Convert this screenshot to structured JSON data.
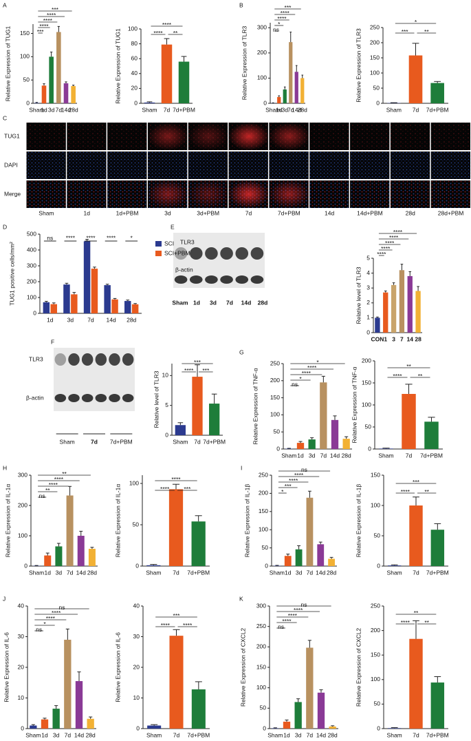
{
  "chart_data": [
    {
      "type": "bar",
      "panel": "A",
      "ylabel": "Relative Expression of TUG1",
      "categories": [
        "Sham",
        "1d",
        "3d",
        "7d",
        "14d",
        "28d"
      ],
      "values": [
        1,
        38,
        100,
        153,
        43,
        37
      ],
      "errors": [
        1,
        4,
        10,
        12,
        3,
        2
      ],
      "colors": [
        "#2b3a8f",
        "#e85a1e",
        "#1e7d3a",
        "#b89160",
        "#8a3a96",
        "#f2b134"
      ],
      "ylim": [
        0,
        170
      ],
      "yticks": [
        0,
        50,
        100,
        150
      ],
      "comparisons": [
        {
          "pair": [
            "Sham",
            "1d"
          ],
          "label": "***"
        },
        {
          "pair": [
            "Sham",
            "3d"
          ],
          "label": "****"
        },
        {
          "pair": [
            "Sham",
            "7d"
          ],
          "label": "****"
        },
        {
          "pair": [
            "Sham",
            "14d"
          ],
          "label": "****"
        },
        {
          "pair": [
            "Sham",
            "28d"
          ],
          "label": "***"
        }
      ]
    },
    {
      "type": "bar",
      "ylabel": "Relative Expression of TUG1",
      "categories": [
        "Sham",
        "7d",
        "7d+PBM"
      ],
      "values": [
        1,
        79,
        56
      ],
      "errors": [
        1,
        8,
        7
      ],
      "colors": [
        "#2b3a8f",
        "#e85a1e",
        "#1e7d3a"
      ],
      "ylim": [
        0,
        100
      ],
      "yticks": [
        0,
        20,
        40,
        60,
        80,
        100
      ],
      "comparisons": [
        {
          "pair": [
            "Sham",
            "7d"
          ],
          "label": "****"
        },
        {
          "pair": [
            "7d",
            "7d+PBM"
          ],
          "label": "**"
        },
        {
          "pair": [
            "Sham",
            "7d+PBM"
          ],
          "label": "****"
        }
      ]
    },
    {
      "type": "bar",
      "panel": "B",
      "ylabel": "Relative Expression of TLR3",
      "categories": [
        "Sham",
        "1d",
        "3d",
        "7d",
        "14d",
        "28d"
      ],
      "values": [
        1,
        25,
        55,
        243,
        125,
        100
      ],
      "errors": [
        1,
        5,
        10,
        40,
        25,
        12
      ],
      "colors": [
        "#2b3a8f",
        "#e85a1e",
        "#1e7d3a",
        "#b89160",
        "#8a3a96",
        "#f2b134"
      ],
      "ylim": [
        0,
        320
      ],
      "yticks": [
        0,
        100,
        200,
        300
      ],
      "comparisons": [
        {
          "pair": [
            "Sham",
            "1d"
          ],
          "label": "ns"
        },
        {
          "pair": [
            "Sham",
            "3d"
          ],
          "label": "*"
        },
        {
          "pair": [
            "Sham",
            "7d"
          ],
          "label": "****"
        },
        {
          "pair": [
            "Sham",
            "14d"
          ],
          "label": "****"
        },
        {
          "pair": [
            "Sham",
            "28d"
          ],
          "label": "***"
        }
      ]
    },
    {
      "type": "bar",
      "ylabel": "Relative Expression of TLR3",
      "categories": [
        "Sham",
        "7d",
        "7d+PBM"
      ],
      "values": [
        1,
        158,
        67
      ],
      "errors": [
        1,
        40,
        5
      ],
      "colors": [
        "#2b3a8f",
        "#e85a1e",
        "#1e7d3a"
      ],
      "ylim": [
        0,
        250
      ],
      "yticks": [
        0,
        50,
        100,
        150,
        200,
        250
      ],
      "comparisons": [
        {
          "pair": [
            "Sham",
            "7d"
          ],
          "label": "***"
        },
        {
          "pair": [
            "7d",
            "7d+PBM"
          ],
          "label": "**"
        },
        {
          "pair": [
            "Sham",
            "7d+PBM"
          ],
          "label": "*"
        }
      ]
    },
    {
      "type": "bar",
      "panel": "D",
      "ylabel": "TUG1 positive cells/mm²",
      "categories": [
        "1d",
        "3d",
        "7d",
        "14d",
        "28d"
      ],
      "series": [
        {
          "name": "SCI",
          "color": "#2b3a8f",
          "values": [
            70,
            182,
            455,
            178,
            78
          ],
          "errors": [
            6,
            8,
            12,
            6,
            6
          ]
        },
        {
          "name": "SCI+PBM",
          "color": "#e85a1e",
          "values": [
            58,
            120,
            282,
            88,
            57
          ],
          "errors": [
            8,
            12,
            10,
            6,
            5
          ]
        }
      ],
      "ylim": [
        0,
        500
      ],
      "yticks": [
        0,
        100,
        200,
        300,
        400,
        500
      ],
      "significance": [
        "ns",
        "****",
        "****",
        "****",
        "*"
      ],
      "legend": "upper right"
    },
    {
      "type": "bar",
      "ylabel": "Relative level of TLR3",
      "categories": [
        "CON",
        "1",
        "3",
        "7",
        "14",
        "28"
      ],
      "values": [
        1.0,
        2.7,
        3.2,
        4.2,
        3.8,
        2.8
      ],
      "errors": [
        0.05,
        0.1,
        0.15,
        0.4,
        0.3,
        0.3
      ],
      "colors": [
        "#2b3a8f",
        "#e85a1e",
        "#c9a46a",
        "#b89160",
        "#8a3a96",
        "#f2b134"
      ],
      "ylim": [
        0,
        5
      ],
      "yticks": [
        0,
        1,
        2,
        3,
        4,
        5
      ],
      "comparisons": [
        {
          "pair": [
            "CON",
            "1"
          ],
          "label": "****"
        },
        {
          "pair": [
            "CON",
            "3"
          ],
          "label": "****"
        },
        {
          "pair": [
            "CON",
            "7"
          ],
          "label": "****"
        },
        {
          "pair": [
            "CON",
            "14"
          ],
          "label": "****"
        },
        {
          "pair": [
            "CON",
            "28"
          ],
          "label": "****"
        }
      ]
    },
    {
      "type": "bar",
      "ylabel": "Relative level of TLR3",
      "categories": [
        "Sham",
        "7d",
        "7d+PBM"
      ],
      "values": [
        1.7,
        9.8,
        5.3
      ],
      "errors": [
        0.4,
        2,
        1.6
      ],
      "colors": [
        "#2b3a8f",
        "#e85a1e",
        "#1e7d3a"
      ],
      "ylim": [
        0,
        12
      ],
      "yticks": [
        0,
        5,
        10
      ],
      "comparisons": [
        {
          "pair": [
            "Sham",
            "7d"
          ],
          "label": "****"
        },
        {
          "pair": [
            "7d",
            "7d+PBM"
          ],
          "label": "***"
        },
        {
          "pair": [
            "Sham",
            "7d+PBM"
          ],
          "label": "***"
        }
      ]
    },
    {
      "type": "bar",
      "panel": "G",
      "ylabel": "Relative Expression of  TNF-α",
      "categories": [
        "Sham",
        "1d",
        "3d",
        "7d",
        "14d",
        "28d"
      ],
      "values": [
        1,
        18,
        28,
        195,
        85,
        30
      ],
      "errors": [
        1,
        4,
        5,
        18,
        12,
        6
      ],
      "colors": [
        "#2b3a8f",
        "#e85a1e",
        "#1e7d3a",
        "#b89160",
        "#8a3a96",
        "#f2b134"
      ],
      "ylim": [
        0,
        250
      ],
      "yticks": [
        0,
        50,
        100,
        150,
        200,
        250
      ],
      "comparisons": [
        {
          "pair": [
            "Sham",
            "1d"
          ],
          "label": "ns"
        },
        {
          "pair": [
            "Sham",
            "3d"
          ],
          "label": "*"
        },
        {
          "pair": [
            "Sham",
            "7d"
          ],
          "label": "****"
        },
        {
          "pair": [
            "Sham",
            "14d"
          ],
          "label": "****"
        },
        {
          "pair": [
            "Sham",
            "28d"
          ],
          "label": "*"
        }
      ]
    },
    {
      "type": "bar",
      "ylabel": "Relative Expression of  TNF-α",
      "categories": [
        "Sham",
        "7d",
        "7d+PBM"
      ],
      "values": [
        1,
        125,
        62
      ],
      "errors": [
        1,
        22,
        10
      ],
      "colors": [
        "#2b3a8f",
        "#e85a1e",
        "#1e7d3a"
      ],
      "ylim": [
        0,
        200
      ],
      "yticks": [
        0,
        50,
        100,
        150,
        200
      ],
      "comparisons": [
        {
          "pair": [
            "Sham",
            "7d"
          ],
          "label": "****"
        },
        {
          "pair": [
            "7d",
            "7d+PBM"
          ],
          "label": "**"
        },
        {
          "pair": [
            "Sham",
            "7d+PBM"
          ],
          "label": "**"
        }
      ]
    },
    {
      "type": "bar",
      "panel": "H",
      "ylabel": "Relative Expression of IL-1α",
      "categories": [
        "Sham",
        "1d",
        "3d",
        "7d",
        "14d",
        "28d"
      ],
      "values": [
        1,
        35,
        65,
        233,
        100,
        57
      ],
      "errors": [
        1,
        8,
        10,
        30,
        15,
        5
      ],
      "colors": [
        "#2b3a8f",
        "#e85a1e",
        "#1e7d3a",
        "#b89160",
        "#8a3a96",
        "#f2b134"
      ],
      "ylim": [
        0,
        300
      ],
      "yticks": [
        0,
        100,
        200,
        300
      ],
      "comparisons": [
        {
          "pair": [
            "Sham",
            "1d"
          ],
          "label": "ns"
        },
        {
          "pair": [
            "Sham",
            "3d"
          ],
          "label": "**"
        },
        {
          "pair": [
            "Sham",
            "7d"
          ],
          "label": "****"
        },
        {
          "pair": [
            "Sham",
            "14d"
          ],
          "label": "****"
        },
        {
          "pair": [
            "Sham",
            "28d"
          ],
          "label": "**"
        }
      ]
    },
    {
      "type": "bar",
      "ylabel": "Relative Expression of IL-1α",
      "categories": [
        "Sham",
        "7d",
        "7d+PBM"
      ],
      "values": [
        1,
        93,
        54
      ],
      "errors": [
        1,
        6,
        7
      ],
      "colors": [
        "#2b3a8f",
        "#e85a1e",
        "#1e7d3a"
      ],
      "ylim": [
        0,
        110
      ],
      "yticks": [
        0,
        50,
        100
      ],
      "comparisons": [
        {
          "pair": [
            "Sham",
            "7d"
          ],
          "label": "****"
        },
        {
          "pair": [
            "7d",
            "7d+PBM"
          ],
          "label": "***"
        },
        {
          "pair": [
            "Sham",
            "7d+PBM"
          ],
          "label": "****"
        }
      ]
    },
    {
      "type": "bar",
      "panel": "I",
      "ylabel": "Relative Expression of IL-1β",
      "categories": [
        "Sham",
        "1d",
        "3d",
        "7d",
        "14d",
        "28d"
      ],
      "values": [
        1,
        28,
        46,
        188,
        60,
        20
      ],
      "errors": [
        1,
        5,
        10,
        18,
        6,
        4
      ],
      "colors": [
        "#2b3a8f",
        "#e85a1e",
        "#1e7d3a",
        "#b89160",
        "#8a3a96",
        "#f2b134"
      ],
      "ylim": [
        0,
        250
      ],
      "yticks": [
        0,
        50,
        100,
        150,
        200,
        250
      ],
      "comparisons": [
        {
          "pair": [
            "Sham",
            "1d"
          ],
          "label": "*"
        },
        {
          "pair": [
            "Sham",
            "3d"
          ],
          "label": "***"
        },
        {
          "pair": [
            "Sham",
            "7d"
          ],
          "label": "****"
        },
        {
          "pair": [
            "Sham",
            "14d"
          ],
          "label": "****"
        },
        {
          "pair": [
            "Sham",
            "28d"
          ],
          "label": "ns"
        }
      ]
    },
    {
      "type": "bar",
      "ylabel": "Relative Expression of IL-1β",
      "categories": [
        "Sham",
        "7d",
        "7d+PBM"
      ],
      "values": [
        1,
        100,
        60
      ],
      "errors": [
        1,
        14,
        10
      ],
      "colors": [
        "#2b3a8f",
        "#e85a1e",
        "#1e7d3a"
      ],
      "ylim": [
        0,
        150
      ],
      "yticks": [
        0,
        50,
        100,
        150
      ],
      "comparisons": [
        {
          "pair": [
            "Sham",
            "7d"
          ],
          "label": "****"
        },
        {
          "pair": [
            "7d",
            "7d+PBM"
          ],
          "label": "**"
        },
        {
          "pair": [
            "Sham",
            "7d+PBM"
          ],
          "label": "***"
        }
      ]
    },
    {
      "type": "bar",
      "panel": "J",
      "ylabel": "Relative Expression of IL-6",
      "categories": [
        "Sham",
        "1d",
        "3d",
        "7d",
        "14d",
        "28d"
      ],
      "values": [
        1,
        3,
        6.5,
        29,
        15.5,
        3.2
      ],
      "errors": [
        0.3,
        0.4,
        1,
        3.5,
        3,
        0.6
      ],
      "colors": [
        "#2b3a8f",
        "#e85a1e",
        "#1e7d3a",
        "#b89160",
        "#8a3a96",
        "#f2b134"
      ],
      "ylim": [
        0,
        40
      ],
      "yticks": [
        0,
        10,
        20,
        30,
        40
      ],
      "comparisons": [
        {
          "pair": [
            "Sham",
            "1d"
          ],
          "label": "ns"
        },
        {
          "pair": [
            "Sham",
            "3d"
          ],
          "label": "*"
        },
        {
          "pair": [
            "Sham",
            "7d"
          ],
          "label": "****"
        },
        {
          "pair": [
            "Sham",
            "14d"
          ],
          "label": "****"
        },
        {
          "pair": [
            "Sham",
            "28d"
          ],
          "label": "ns"
        }
      ]
    },
    {
      "type": "bar",
      "ylabel": "Relative Expression of IL-6",
      "categories": [
        "Sham",
        "7d",
        "7d+PBM"
      ],
      "values": [
        1,
        30.3,
        12.8
      ],
      "errors": [
        0.3,
        2,
        2.5
      ],
      "colors": [
        "#2b3a8f",
        "#e85a1e",
        "#1e7d3a"
      ],
      "ylim": [
        0,
        40
      ],
      "yticks": [
        0,
        10,
        20,
        30,
        40
      ],
      "comparisons": [
        {
          "pair": [
            "Sham",
            "7d"
          ],
          "label": "****"
        },
        {
          "pair": [
            "7d",
            "7d+PBM"
          ],
          "label": "****"
        },
        {
          "pair": [
            "Sham",
            "7d+PBM"
          ],
          "label": "***"
        }
      ]
    },
    {
      "type": "bar",
      "panel": "K",
      "ylabel": "Relative Expression of  CXCL2",
      "categories": [
        "Sham",
        "1d",
        "3d",
        "7d",
        "14d",
        "28d"
      ],
      "values": [
        1,
        17,
        65,
        198,
        88,
        5
      ],
      "errors": [
        1,
        4,
        8,
        18,
        7,
        2
      ],
      "colors": [
        "#2b3a8f",
        "#e85a1e",
        "#1e7d3a",
        "#b89160",
        "#8a3a96",
        "#f2b134"
      ],
      "ylim": [
        0,
        300
      ],
      "yticks": [
        0,
        50,
        100,
        150,
        200,
        250,
        300
      ],
      "comparisons": [
        {
          "pair": [
            "Sham",
            "1d"
          ],
          "label": "ns"
        },
        {
          "pair": [
            "Sham",
            "3d"
          ],
          "label": "****"
        },
        {
          "pair": [
            "Sham",
            "7d"
          ],
          "label": "****"
        },
        {
          "pair": [
            "Sham",
            "14d"
          ],
          "label": "****"
        },
        {
          "pair": [
            "Sham",
            "28d"
          ],
          "label": "ns"
        }
      ]
    },
    {
      "type": "bar",
      "ylabel": "Relative Expression of  CXCL2",
      "categories": [
        "Sham",
        "7d",
        "7d+PBM"
      ],
      "values": [
        1,
        183,
        94
      ],
      "errors": [
        1,
        37,
        12
      ],
      "colors": [
        "#2b3a8f",
        "#e85a1e",
        "#1e7d3a"
      ],
      "ylim": [
        0,
        250
      ],
      "yticks": [
        0,
        50,
        100,
        150,
        200,
        250
      ],
      "comparisons": [
        {
          "pair": [
            "Sham",
            "7d"
          ],
          "label": "****"
        },
        {
          "pair": [
            "7d",
            "7d+PBM"
          ],
          "label": "**"
        },
        {
          "pair": [
            "Sham",
            "7d+PBM"
          ],
          "label": "**"
        }
      ]
    }
  ],
  "image_panels": {
    "C": {
      "panel": "C",
      "rows": [
        "TUG1",
        "DAPI",
        "Merge"
      ],
      "columns": [
        "Sham",
        "1d",
        "1d+PBM",
        "3d",
        "3d+PBM",
        "7d",
        "7d+PBM",
        "14d",
        "14d+PBM",
        "28d",
        "28d+PBM"
      ]
    },
    "E": {
      "panel": "E",
      "rows": [
        "TLR3",
        "β-actin"
      ],
      "lanes": [
        "Sham",
        "1d",
        "3d",
        "7d",
        "14d",
        "28d"
      ]
    },
    "F": {
      "panel": "F",
      "rows": [
        "TLR3",
        "β-actin"
      ],
      "lanes": [
        "Sham",
        "7d",
        "7d+PBM"
      ]
    }
  }
}
